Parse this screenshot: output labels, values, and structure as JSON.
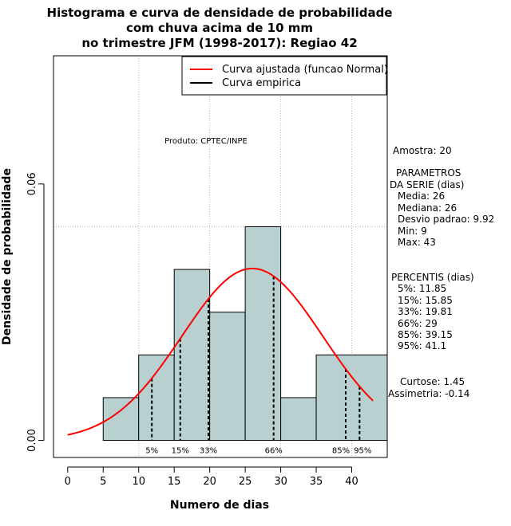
{
  "title_lines": [
    "Histograma e curva de densidade de probabilidade",
    "com chuva acima de 10 mm",
    "no trimestre JFM (1998-2017): Regiao 42"
  ],
  "xlabel": "Numero de dias",
  "ylabel": "Densidade de probabilidade",
  "produto": "Produto: CPTEC/INPE",
  "legend": [
    {
      "label": "Curva ajustada (funcao Normal)",
      "color": "#ff0000"
    },
    {
      "label": "Curva empirica",
      "color": "#000000"
    }
  ],
  "side_stats": {
    "amostra": "Amostra: 20",
    "params_title_1": "PARAMETROS",
    "params_title_2": "DA SERIE (dias)",
    "params": [
      "Media: 26",
      "Mediana: 26",
      "Desvio padrao: 9.92",
      "Min: 9",
      "Max: 43"
    ],
    "percentis_title": "PERCENTIS (dias)",
    "percentis": [
      "5%: 11.85",
      "15%: 15.85",
      "33%: 19.81",
      "66%: 29",
      "85%: 39.15",
      "95%: 41.1"
    ],
    "curtose": "Curtose: 1.45",
    "assimetria": "Assimetria: -0.14"
  },
  "chart_data": {
    "type": "bar",
    "xlim": [
      -2,
      45
    ],
    "ylim": [
      -0.004,
      0.09
    ],
    "x_ticks": [
      0,
      5,
      10,
      15,
      20,
      25,
      30,
      35,
      40
    ],
    "y_ticks": [
      0.0,
      0.06
    ],
    "y_tick_labels": [
      "0.00",
      "0.06"
    ],
    "grid": true,
    "bins": [
      {
        "from": 5,
        "to": 10,
        "density": 0.01
      },
      {
        "from": 10,
        "to": 15,
        "density": 0.02
      },
      {
        "from": 15,
        "to": 20,
        "density": 0.04
      },
      {
        "from": 20,
        "to": 25,
        "density": 0.03
      },
      {
        "from": 25,
        "to": 30,
        "density": 0.05
      },
      {
        "from": 30,
        "to": 35,
        "density": 0.01
      },
      {
        "from": 35,
        "to": 45,
        "density": 0.02
      }
    ],
    "bar_color": "#b8d0d0",
    "normal_fit": {
      "mean": 26,
      "sd": 9.92,
      "x_from": 0,
      "x_to": 43,
      "color": "#ff0000"
    },
    "percentiles": [
      {
        "label": "5%",
        "value": 11.85
      },
      {
        "label": "15%",
        "value": 15.85
      },
      {
        "label": "33%",
        "value": 19.81
      },
      {
        "label": "66%",
        "value": 29
      },
      {
        "label": "85%",
        "value": 39.15
      },
      {
        "label": "95%",
        "value": 41.1
      }
    ],
    "legend_position": "top-right"
  }
}
